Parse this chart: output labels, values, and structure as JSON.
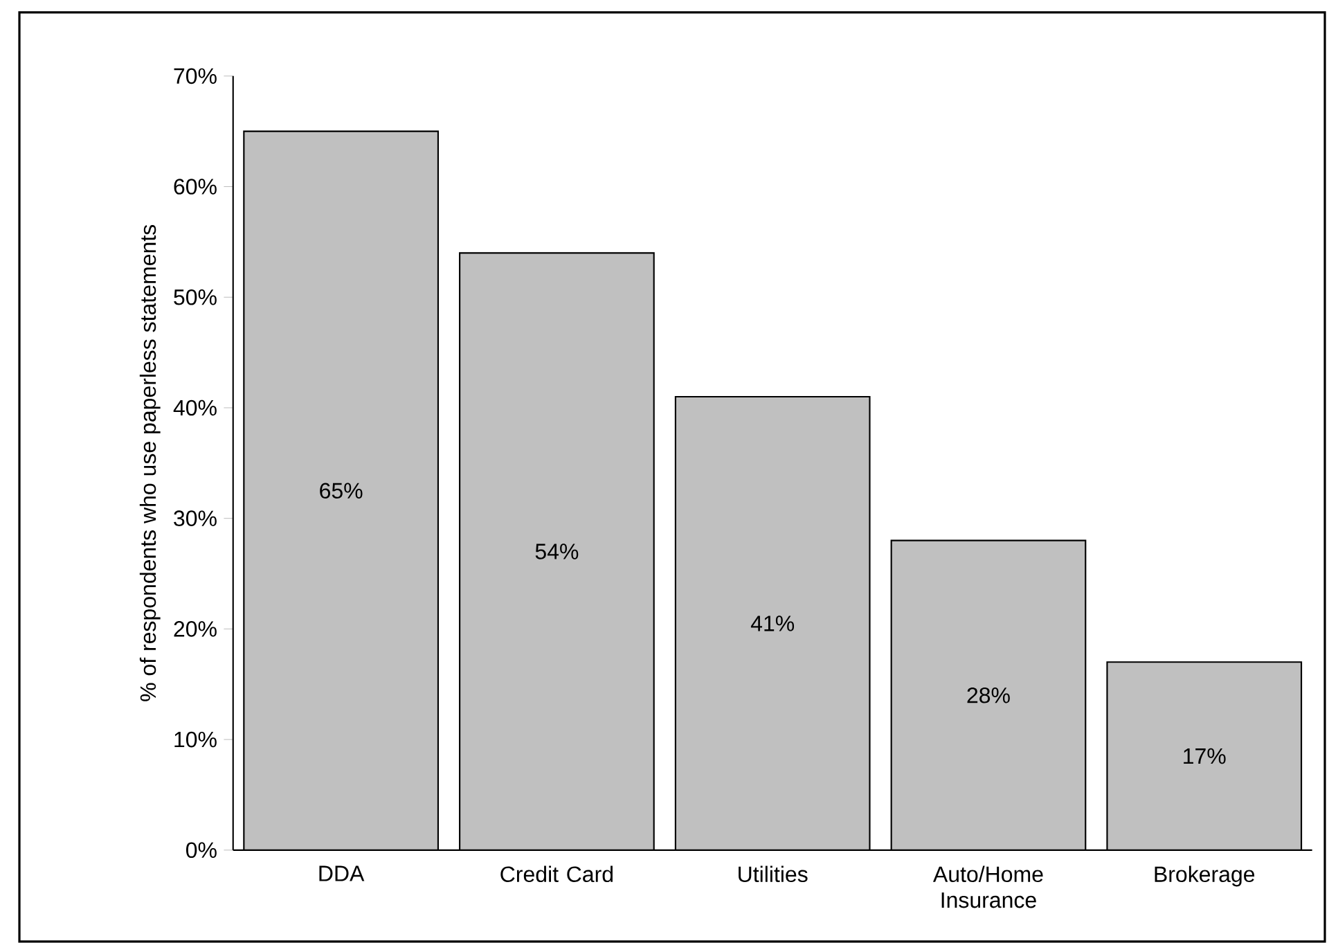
{
  "chart_data": {
    "type": "bar",
    "ylabel": "% of respondents who use paperless statements",
    "categories": [
      "DDA",
      "Credit Card",
      "Utilities",
      "Auto/Home Insurance",
      "Brokerage"
    ],
    "values": [
      65,
      54,
      41,
      28,
      17
    ],
    "value_labels": [
      "65%",
      "54%",
      "41%",
      "28%",
      "17%"
    ],
    "color": "#c0c0c0",
    "ylim": [
      0,
      70
    ],
    "yticks": [
      {
        "value": 0,
        "label": "0%"
      },
      {
        "value": 10,
        "label": "10%"
      },
      {
        "value": 20,
        "label": "20%"
      },
      {
        "value": 30,
        "label": "30%"
      },
      {
        "value": 40,
        "label": "40%"
      },
      {
        "value": 50,
        "label": "50%"
      },
      {
        "value": 60,
        "label": "60%"
      },
      {
        "value": 70,
        "label": "70%"
      }
    ],
    "grid": false
  }
}
